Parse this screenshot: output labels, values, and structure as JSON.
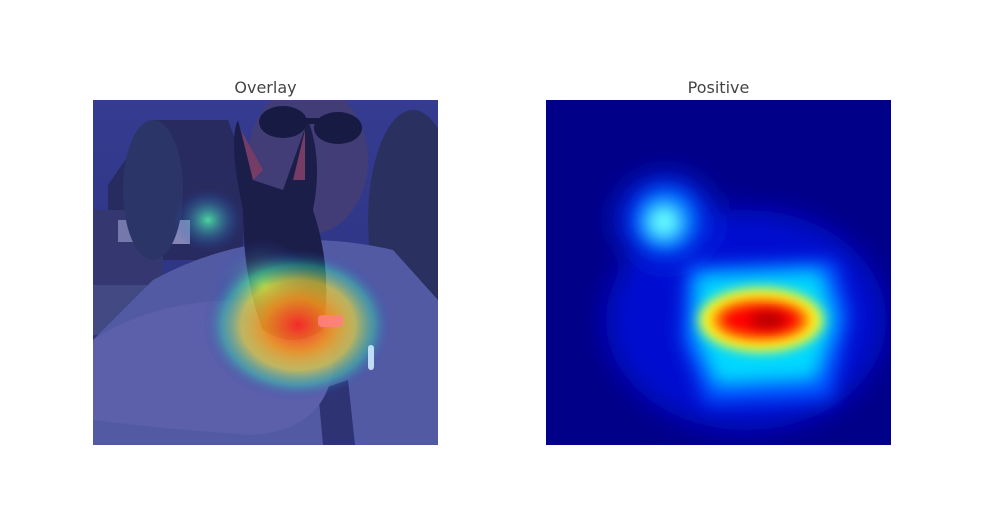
{
  "panels": [
    {
      "title": "Overlay",
      "content": "photo-with-heatmap-overlay"
    },
    {
      "title": "Positive",
      "content": "heatmap"
    }
  ],
  "colors": {
    "background": "#ffffff",
    "title_text": "#444444",
    "heatmap_low": "#00008b",
    "heatmap_mid": "#00e5ff",
    "heatmap_high": "#ff0000"
  }
}
